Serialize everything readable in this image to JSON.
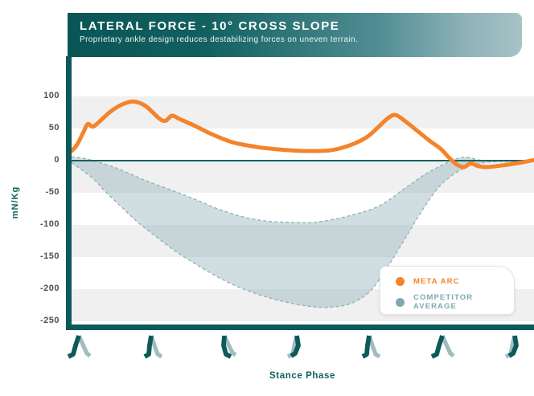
{
  "header": {
    "title": "LATERAL FORCE - 10° CROSS SLOPE",
    "subtitle": "Proprietary ankle design reduces destabilizing forces on uneven terrain."
  },
  "axes": {
    "y_label": "mN/Kg",
    "x_label": "Stance Phase",
    "y_ticks": [
      100,
      50,
      0,
      -50,
      -100,
      -150,
      -200,
      -250
    ]
  },
  "legend": {
    "items": [
      {
        "label": "META ARC",
        "color": "#f5832a"
      },
      {
        "label": "COMPETITOR AVERAGE",
        "color": "#7fa9b1"
      }
    ]
  },
  "colors": {
    "accent_orange": "#f5832a",
    "dark_teal": "#0d5a5a",
    "banner_gradient_start": "#0a5555",
    "banner_gradient_end": "#a6c3c6",
    "band_fill": "rgba(140,172,180,0.40)",
    "band_edge": "#8fb6bd",
    "stripe_gray": "#f0f0f1",
    "zero_line": "#17605f",
    "tick_text": "#4f4f4f",
    "gait_dark": "#0d5a5a",
    "gait_light": "#9fbcc1"
  },
  "footer": {
    "gait_icons": [
      "walking-legs-icon",
      "walking-legs-icon",
      "walking-legs-icon",
      "walking-legs-icon",
      "walking-legs-icon",
      "walking-legs-icon",
      "walking-legs-icon"
    ]
  },
  "chart_data": {
    "type": "area",
    "title": "LATERAL FORCE - 10° CROSS SLOPE",
    "subtitle": "Proprietary ankle design reduces destabilizing forces on uneven terrain.",
    "xlabel": "Stance Phase",
    "ylabel": "mN/Kg",
    "xlim": [
      0,
      100
    ],
    "ylim": [
      -255,
      155
    ],
    "y_ticks": [
      100,
      50,
      0,
      -50,
      -100,
      -150,
      -200,
      -250
    ],
    "grid": false,
    "stripe_bands": [
      [
        100,
        50
      ],
      [
        0,
        -50
      ],
      [
        -100,
        -150
      ],
      [
        -200,
        -250
      ]
    ],
    "legend_position": "bottom-right",
    "series": [
      {
        "name": "META ARC",
        "type": "line",
        "color": "#f5832a",
        "points": [
          [
            0,
            15
          ],
          [
            1.2,
            25
          ],
          [
            2.6,
            45
          ],
          [
            3.5,
            57
          ],
          [
            4.5,
            53
          ],
          [
            5.6,
            58
          ],
          [
            8.2,
            75
          ],
          [
            10.8,
            87
          ],
          [
            13.4,
            92
          ],
          [
            16,
            85
          ],
          [
            18.9,
            66
          ],
          [
            20.3,
            62
          ],
          [
            21.7,
            70
          ],
          [
            23.3,
            65
          ],
          [
            26.4,
            55
          ],
          [
            30.7,
            40
          ],
          [
            35.1,
            28
          ],
          [
            40.3,
            21
          ],
          [
            45.5,
            17
          ],
          [
            50.7,
            15
          ],
          [
            55.9,
            16
          ],
          [
            60.2,
            24
          ],
          [
            63.7,
            36
          ],
          [
            66.3,
            52
          ],
          [
            68.4,
            66
          ],
          [
            70.1,
            71
          ],
          [
            72.4,
            60
          ],
          [
            75,
            45
          ],
          [
            77.6,
            30
          ],
          [
            79.9,
            18
          ],
          [
            81.6,
            5
          ],
          [
            83.3,
            -6
          ],
          [
            84.9,
            -10
          ],
          [
            86.3,
            -4
          ],
          [
            87.7,
            -8
          ],
          [
            89.8,
            -10
          ],
          [
            92.4,
            -8
          ],
          [
            95.5,
            -5
          ],
          [
            97.9,
            -2
          ],
          [
            100,
            1
          ]
        ]
      },
      {
        "name": "COMPETITOR AVERAGE",
        "type": "band",
        "fill": "rgba(140,172,180,0.40)",
        "edge_color": "#8fb6bd",
        "edge_style": "dashed",
        "upper": [
          [
            0,
            6
          ],
          [
            3,
            3
          ],
          [
            5.6,
            -2
          ],
          [
            10.2,
            -13
          ],
          [
            16,
            -31
          ],
          [
            22,
            -47
          ],
          [
            27.3,
            -62
          ],
          [
            31.6,
            -75
          ],
          [
            36.8,
            -87
          ],
          [
            42,
            -94
          ],
          [
            47.2,
            -96
          ],
          [
            52.4,
            -96
          ],
          [
            57.6,
            -90
          ],
          [
            62,
            -82
          ],
          [
            65.8,
            -73
          ],
          [
            68.9,
            -60
          ],
          [
            71.5,
            -46
          ],
          [
            74.1,
            -33
          ],
          [
            76.7,
            -20
          ],
          [
            79.3,
            -10
          ],
          [
            81.6,
            -2
          ],
          [
            83.7,
            4
          ],
          [
            85.8,
            5
          ],
          [
            88,
            1
          ],
          [
            91.5,
            -1
          ],
          [
            100,
            -1
          ]
        ],
        "lower": [
          [
            0,
            -3
          ],
          [
            2.1,
            -14
          ],
          [
            4.7,
            -28
          ],
          [
            7.3,
            -48
          ],
          [
            10.8,
            -72
          ],
          [
            14.2,
            -95
          ],
          [
            18.6,
            -120
          ],
          [
            22.9,
            -143
          ],
          [
            27.3,
            -163
          ],
          [
            31.6,
            -181
          ],
          [
            35.9,
            -196
          ],
          [
            40.3,
            -208
          ],
          [
            44.6,
            -217
          ],
          [
            49,
            -224
          ],
          [
            53.3,
            -228
          ],
          [
            57.6,
            -227
          ],
          [
            61.1,
            -220
          ],
          [
            64.6,
            -203
          ],
          [
            68.1,
            -168
          ],
          [
            70.7,
            -138
          ],
          [
            73.3,
            -107
          ],
          [
            76.2,
            -73
          ],
          [
            79.3,
            -42
          ],
          [
            81.9,
            -25
          ],
          [
            84.5,
            -13
          ],
          [
            87.2,
            -6
          ],
          [
            90.6,
            -2
          ],
          [
            95.8,
            -1
          ],
          [
            100,
            -1
          ]
        ]
      }
    ]
  }
}
